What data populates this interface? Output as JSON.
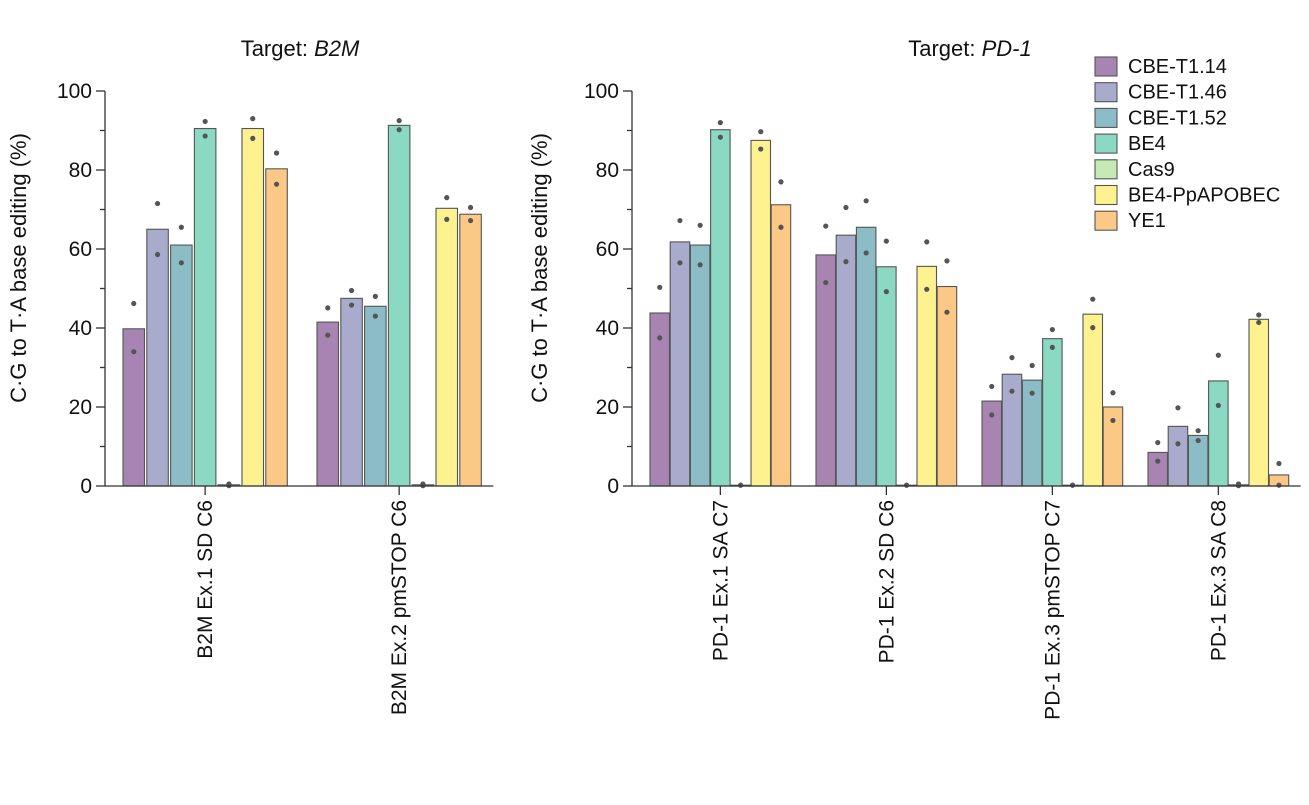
{
  "colors": {
    "CBE-T1.14": "#a784b2",
    "CBE-T1.46": "#a9abcc",
    "CBE-T1.52": "#8cbdc6",
    "BE4": "#8bd8c3",
    "Cas9": "#c7e9b4",
    "BE4-PpAPOBEC": "#fdf190",
    "YE1": "#fbc886"
  },
  "legend": [
    "CBE-T1.14",
    "CBE-T1.46",
    "CBE-T1.52",
    "BE4",
    "Cas9",
    "BE4-PpAPOBEC",
    "YE1"
  ],
  "chart_data": [
    {
      "type": "bar",
      "title_prefix": "Target: ",
      "title_target": "B2M",
      "ylabel": "C·G to T·A base editing (%)",
      "ylim": [
        0,
        100
      ],
      "yticks": [
        0,
        20,
        40,
        60,
        80,
        100
      ],
      "categories": [
        "B2M Ex.1 SD C6",
        "B2M Ex.2 pmSTOP C6"
      ],
      "series": [
        {
          "name": "CBE-T1.14",
          "values": [
            39.8,
            41.5
          ],
          "points": [
            [
              46.2,
              34.0
            ],
            [
              45.1,
              38.2
            ]
          ]
        },
        {
          "name": "CBE-T1.46",
          "values": [
            65.0,
            47.5
          ],
          "points": [
            [
              71.5,
              58.6
            ],
            [
              49.5,
              45.8
            ]
          ]
        },
        {
          "name": "CBE-T1.52",
          "values": [
            61.0,
            45.5
          ],
          "points": [
            [
              65.5,
              56.5
            ],
            [
              48.0,
              43.0
            ]
          ]
        },
        {
          "name": "BE4",
          "values": [
            90.5,
            91.3
          ],
          "points": [
            [
              92.3,
              88.6
            ],
            [
              92.5,
              90.2
            ]
          ]
        },
        {
          "name": "Cas9",
          "values": [
            0.3,
            0.3
          ],
          "points": [
            [
              0.5,
              0.1
            ],
            [
              0.5,
              0.1
            ]
          ]
        },
        {
          "name": "BE4-PpAPOBEC",
          "values": [
            90.5,
            70.3
          ],
          "points": [
            [
              93.0,
              88.0
            ],
            [
              73.0,
              67.5
            ]
          ]
        },
        {
          "name": "YE1",
          "values": [
            80.3,
            68.8
          ],
          "points": [
            [
              84.3,
              76.4
            ],
            [
              70.5,
              67.2
            ]
          ]
        }
      ]
    },
    {
      "type": "bar",
      "title_prefix": "Target: ",
      "title_target": "PD-1",
      "ylabel": "C·G to T·A base editing (%)",
      "ylim": [
        0,
        100
      ],
      "yticks": [
        0,
        20,
        40,
        60,
        80,
        100
      ],
      "categories": [
        "PD-1 Ex.1 SA C7",
        "PD-1 Ex.2 SD C6",
        "PD-1 Ex.3 pmSTOP C7",
        "PD-1 Ex.3 SA C8"
      ],
      "series": [
        {
          "name": "CBE-T1.14",
          "values": [
            43.8,
            58.5,
            21.5,
            8.5
          ],
          "points": [
            [
              50.3,
              37.5
            ],
            [
              65.8,
              51.5
            ],
            [
              25.2,
              18.0
            ],
            [
              11.0,
              6.3
            ]
          ]
        },
        {
          "name": "CBE-T1.46",
          "values": [
            61.8,
            63.5,
            28.3,
            15.1
          ],
          "points": [
            [
              67.2,
              56.5
            ],
            [
              70.5,
              56.8
            ],
            [
              32.5,
              24.0
            ],
            [
              19.8,
              10.7
            ]
          ]
        },
        {
          "name": "CBE-T1.52",
          "values": [
            61.0,
            65.5,
            26.8,
            12.8
          ],
          "points": [
            [
              66.0,
              56.0
            ],
            [
              72.2,
              59.0
            ],
            [
              30.5,
              23.5
            ],
            [
              14.0,
              11.5
            ]
          ]
        },
        {
          "name": "BE4",
          "values": [
            90.2,
            55.5,
            37.3,
            26.6
          ],
          "points": [
            [
              92.0,
              88.3
            ],
            [
              62.0,
              49.2
            ],
            [
              39.6,
              35.1
            ],
            [
              33.1,
              20.4
            ]
          ]
        },
        {
          "name": "Cas9",
          "values": [
            0.2,
            0.2,
            0.2,
            0.3
          ],
          "points": [
            [
              0.2,
              0.2
            ],
            [
              0.2,
              0.2
            ],
            [
              0.2,
              0.2
            ],
            [
              0.5,
              0.1
            ]
          ]
        },
        {
          "name": "BE4-PpAPOBEC",
          "values": [
            87.5,
            55.6,
            43.5,
            42.2
          ],
          "points": [
            [
              89.7,
              85.3
            ],
            [
              61.8,
              49.8
            ],
            [
              47.3,
              40.1
            ],
            [
              43.3,
              41.4
            ]
          ]
        },
        {
          "name": "YE1",
          "values": [
            71.2,
            50.5,
            20.0,
            2.8
          ],
          "points": [
            [
              77.0,
              65.5
            ],
            [
              57.0,
              44.0
            ],
            [
              23.6,
              16.6
            ],
            [
              5.7,
              0.2
            ]
          ]
        }
      ]
    }
  ]
}
